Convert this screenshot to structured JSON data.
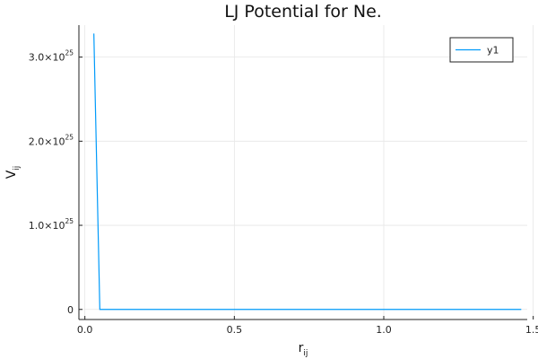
{
  "chart_data": {
    "type": "line",
    "title": "LJ Potential for Ne.",
    "xlabel": {
      "base": "r",
      "sub": "ij"
    },
    "ylabel": {
      "base": "V",
      "sub": "ij"
    },
    "xlim": [
      -0.02,
      1.48
    ],
    "ylim": [
      -1.2e+24,
      3.38e+25
    ],
    "xticks": [
      {
        "value": 0.0,
        "label": "0.0"
      },
      {
        "value": 0.5,
        "label": "0.5"
      },
      {
        "value": 1.0,
        "label": "1.0"
      },
      {
        "value": 1.5,
        "label": "1.5"
      }
    ],
    "yticks": [
      {
        "value": 0,
        "mantissa": "0",
        "exponent": ""
      },
      {
        "value": 1e+25,
        "mantissa": "1.0×10",
        "exponent": "25"
      },
      {
        "value": 2e+25,
        "mantissa": "2.0×10",
        "exponent": "25"
      },
      {
        "value": 3e+25,
        "mantissa": "3.0×10",
        "exponent": "25"
      }
    ],
    "grid": true,
    "legend_position": "top-right",
    "series": [
      {
        "name": "y1",
        "color": "#009AFA",
        "x": [
          0.03,
          0.035,
          0.04,
          0.045,
          0.05,
          0.1,
          0.3,
          0.6,
          0.9,
          1.2,
          1.46
        ],
        "y": [
          3.28e+25,
          2.45e+25,
          1.64e+25,
          8.2e+24,
          0,
          0,
          0,
          0,
          0,
          0,
          0
        ]
      }
    ]
  }
}
